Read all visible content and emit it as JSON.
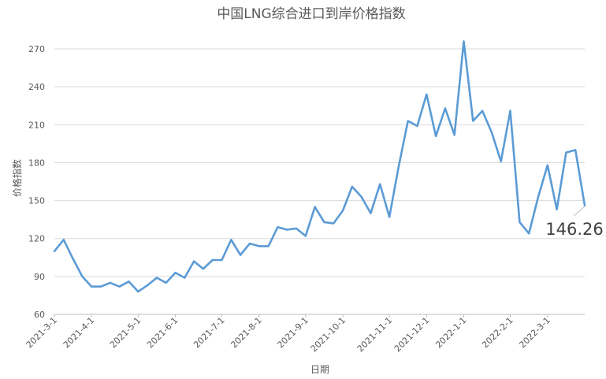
{
  "chart_data": {
    "type": "line",
    "title": "中国LNG综合进口到岸价格指数",
    "xlabel": "日期",
    "ylabel": "价格指数",
    "ylim": [
      60,
      280
    ],
    "yticks": [
      60,
      90,
      120,
      150,
      180,
      210,
      240,
      270
    ],
    "grid": "horizontal",
    "legend": "none",
    "x_tick_labels": [
      "2021-3-1",
      "2021-4-1",
      "2021-5-1",
      "2021-6-1",
      "2021-7-1",
      "2021-8-1",
      "2021-9-1",
      "2021-10-1",
      "2021-11-1",
      "2021-12-1",
      "2022-1-1",
      "2022-2-1",
      "2022-3-1"
    ],
    "series": [
      {
        "color": "#5b9bd5",
        "values": [
          110,
          119,
          104,
          90,
          82,
          82,
          85,
          82,
          86,
          78,
          83,
          89,
          85,
          93,
          89,
          102,
          96,
          103,
          103,
          119,
          107,
          116,
          114,
          114,
          129,
          127,
          128,
          122,
          145,
          133,
          132,
          142,
          161,
          153,
          140,
          163,
          137,
          177,
          213,
          209,
          234,
          201,
          223,
          202,
          276,
          213,
          221,
          204,
          181,
          221,
          133,
          124,
          153,
          178,
          143,
          188,
          190,
          146.26
        ]
      }
    ],
    "annotation": "146.26",
    "colors": {
      "line": "#5b9bd5",
      "grid": "#d9d9d9",
      "text": "#595959"
    }
  }
}
